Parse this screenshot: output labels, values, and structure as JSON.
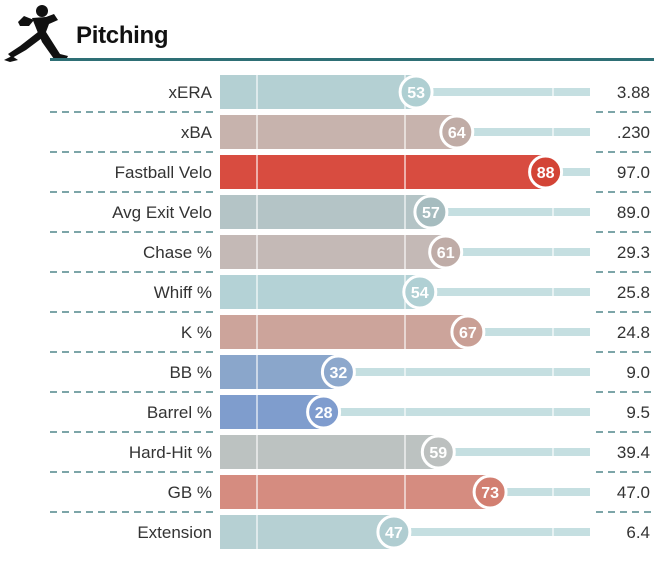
{
  "header": {
    "title": "Pitching",
    "icon": "pitcher-silhouette-icon",
    "rule_color": "#2e6f75"
  },
  "chart_data": {
    "type": "bar",
    "title": "Pitching",
    "xlim": [
      0,
      100
    ],
    "grid": true,
    "legend": "none",
    "categories": [
      "xERA",
      "xBA",
      "Fastball Velo",
      "Avg Exit Velo",
      "Chase %",
      "Whiff %",
      "K %",
      "BB %",
      "Barrel %",
      "Hard-Hit %",
      "GB %",
      "Extension"
    ],
    "percentiles": [
      53,
      64,
      88,
      57,
      61,
      54,
      67,
      32,
      28,
      59,
      73,
      47
    ],
    "stat_values": [
      "3.88",
      ".230",
      "97.0",
      "89.0",
      "29.3",
      "25.8",
      "24.8",
      "9.0",
      "9.5",
      "39.4",
      "47.0",
      "6.4"
    ],
    "colors": [
      "#b4d0d3",
      "#c7b3ad",
      "#d84c40",
      "#b4c4c6",
      "#c4b9b6",
      "#b4d2d6",
      "#cca49b",
      "#8aa6cb",
      "#7f9dcd",
      "#bcc2c1",
      "#d58c80",
      "#b6d0d3"
    ],
    "circle_colors": [
      "#afcfd2",
      "#c0aca6",
      "#d34436",
      "#a6bcbf",
      "#bfaca7",
      "#b0d0d4",
      "#c99f95",
      "#8da8cc",
      "#7f9cce",
      "#bcc0bf",
      "#d27f71",
      "#b0cdd1"
    ],
    "track_color": "#c5dfe1"
  }
}
